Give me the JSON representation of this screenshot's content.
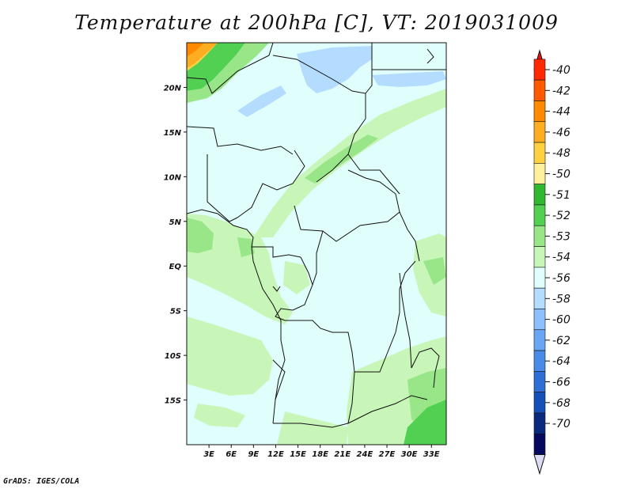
{
  "title": "Temperature at 200hPa [C], VT: 2019031009",
  "credit": "GrADS: IGES/COLA",
  "map": {
    "lon_range": [
      0,
      35
    ],
    "lat_range": [
      -20,
      25
    ],
    "x_ticks": [
      "3E",
      "6E",
      "9E",
      "12E",
      "15E",
      "18E",
      "21E",
      "24E",
      "27E",
      "30E",
      "33E"
    ],
    "x_tick_values": [
      3,
      6,
      9,
      12,
      15,
      18,
      21,
      24,
      27,
      30,
      33
    ],
    "y_ticks": [
      "20N",
      "15N",
      "10N",
      "5N",
      "EQ",
      "5S",
      "10S",
      "15S"
    ],
    "y_tick_values": [
      20,
      15,
      10,
      5,
      0,
      -5,
      -10,
      -15
    ],
    "regions": {
      "background": "-54",
      "cold_band": "-56",
      "warm_patches": "-53",
      "warmer_patches": "-52",
      "warmest_corner": "-46"
    }
  },
  "colorbar": {
    "labels": [
      "-40",
      "-42",
      "-44",
      "-46",
      "-48",
      "-50",
      "-51",
      "-52",
      "-53",
      "-54",
      "-56",
      "-58",
      "-60",
      "-62",
      "-64",
      "-66",
      "-68",
      "-70"
    ],
    "colors": [
      "#ff2a00",
      "#ff5a00",
      "#ff8a00",
      "#ffad20",
      "#ffd040",
      "#fff09a",
      "#30b830",
      "#52d052",
      "#98e688",
      "#c8f5b8",
      "#e0fffc",
      "#b4dcff",
      "#8cc0ff",
      "#6aa6f6",
      "#4a8ae8",
      "#2e6ed6",
      "#1450b8",
      "#0a2a80",
      "#050a60"
    ],
    "top_arrow_color": "#e81010",
    "bottom_arrow_color": "#dcdcf5"
  }
}
